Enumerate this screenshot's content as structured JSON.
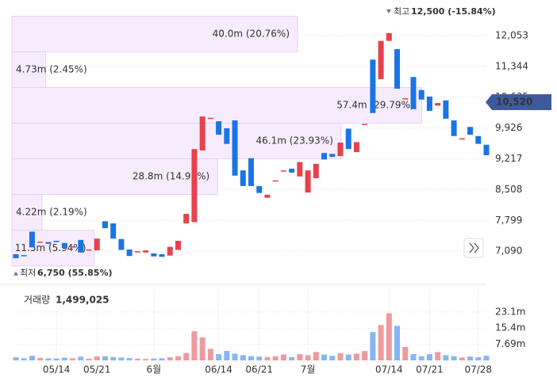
{
  "chart_data": {
    "type": "candlestick",
    "categories": [
      null,
      null,
      null,
      null,
      null,
      "05/14",
      null,
      null,
      null,
      null,
      "05/21",
      null,
      null,
      null,
      null,
      null,
      null,
      "6월",
      null,
      null,
      null,
      null,
      null,
      null,
      null,
      "06/14",
      null,
      null,
      null,
      null,
      "06/21",
      null,
      null,
      null,
      null,
      null,
      "7월",
      null,
      null,
      null,
      null,
      null,
      null,
      null,
      null,
      null,
      "07/14",
      null,
      null,
      null,
      null,
      "07/21",
      null,
      null,
      null,
      null,
      null,
      "07/28",
      null
    ],
    "open": [
      7020,
      7000,
      7540,
      7290,
      7300,
      7330,
      7280,
      7180,
      7350,
      7110,
      7110,
      7780,
      7730,
      7370,
      7130,
      7060,
      7060,
      7040,
      7020,
      6990,
      7120,
      7730,
      7760,
      9410,
      10140,
      10080,
      9920,
      10100,
      8950,
      9230,
      8590,
      8320,
      8700,
      8930,
      8990,
      8810,
      8440,
      8770,
      9350,
      9330,
      9280,
      9910,
      9370,
      10000,
      11500,
      11050,
      11930,
      11740,
      10590,
      11100,
      10800,
      10650,
      10440,
      10560,
      10100,
      9660,
      9950,
      9740,
      9540
    ],
    "high": {
      "text": "최고",
      "value": 12500,
      "label": "12,500 (-15.84%)"
    },
    "low": {
      "text": "최저",
      "value": 6750,
      "label": "6,750 (55.85%)"
    },
    "close": [
      6930,
      6980,
      7180,
      7310,
      7260,
      7300,
      7170,
      7200,
      7060,
      7130,
      7380,
      7620,
      7380,
      7120,
      6980,
      7090,
      7110,
      6970,
      6960,
      7190,
      7330,
      7950,
      9440,
      10190,
      10160,
      9770,
      9560,
      8830,
      8590,
      8590,
      8430,
      8390,
      8720,
      8950,
      8900,
      9140,
      8950,
      9100,
      9200,
      9260,
      9590,
      9440,
      9600,
      10020,
      10270,
      11930,
      12110,
      10830,
      10610,
      10360,
      10580,
      10320,
      10500,
      10140,
      9740,
      9690,
      9770,
      9560,
      9300
    ],
    "up_color": "#e8414e",
    "down_color": "#1b74e4",
    "ylim": [
      6400,
      12780
    ],
    "yticks": [
      {
        "value": 12053,
        "label": "12,053"
      },
      {
        "value": 11344,
        "label": "11,344"
      },
      {
        "value": 10635,
        "label": "10,635"
      },
      {
        "value": 9926,
        "label": "9,926"
      },
      {
        "value": 9217,
        "label": "9,217"
      },
      {
        "value": 8508,
        "label": "8,508"
      },
      {
        "value": 7799,
        "label": "7,799"
      },
      {
        "value": 7090,
        "label": "7,090"
      }
    ],
    "grid": true,
    "current_price": {
      "value": 10520,
      "label": "10,520"
    },
    "profile": [
      {
        "value": 11.5,
        "label": "11.5m (5.94%)"
      },
      {
        "value": 4.22,
        "label": "4.22m (2.19%)"
      },
      {
        "value": 28.8,
        "label": "28.8m (14.93%)"
      },
      {
        "value": 46.1,
        "label": "46.1m (23.93%)"
      },
      {
        "value": 57.4,
        "label": "57.4m (29.79%)"
      },
      {
        "value": 4.73,
        "label": "4.73m (2.45%)"
      },
      {
        "value": 40.0,
        "label": "40.0m (20.76%)"
      }
    ],
    "volume": {
      "title": "거래량",
      "total": "1,499,025",
      "values": [
        1.5,
        1.0,
        2.2,
        1.2,
        1.0,
        0.9,
        1.3,
        1.0,
        1.8,
        0.8,
        1.9,
        2.0,
        1.6,
        1.4,
        1.1,
        0.8,
        0.7,
        0.9,
        1.0,
        1.5,
        2.0,
        3.5,
        13.9,
        11.0,
        5.5,
        3.0,
        4.5,
        3.2,
        2.5,
        2.0,
        1.8,
        1.6,
        2.0,
        2.8,
        1.5,
        3.0,
        2.5,
        4.0,
        2.8,
        2.2,
        3.5,
        2.8,
        3.2,
        4.5,
        13.5,
        16.9,
        22.5,
        16.5,
        6.4,
        3.0,
        2.0,
        3.0,
        4.0,
        2.5,
        2.0,
        1.4,
        1.8,
        1.5,
        2.2
      ],
      "up_color": "#ef9a9f",
      "down_color": "#86b6f3",
      "ylim": [
        0,
        34
      ],
      "yticks": [
        {
          "value": 23.1,
          "label": "23.1m"
        },
        {
          "value": 15.4,
          "label": "15.4m"
        },
        {
          "value": 7.69,
          "label": "7.69m"
        }
      ]
    }
  }
}
